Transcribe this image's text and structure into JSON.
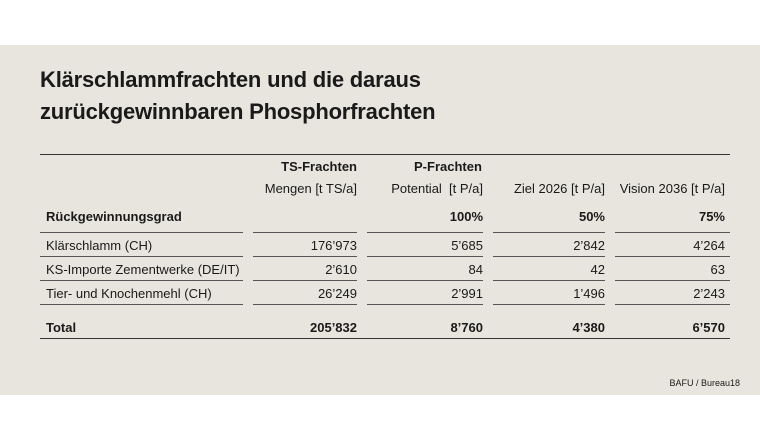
{
  "header": {
    "title": [
      "Klärschlammfrachten und die daraus",
      "zurückgewinnbaren Phosphorfrachten"
    ]
  },
  "table": {
    "group_headers": {
      "ts": "TS-Frachten",
      "p": "P-Frachten"
    },
    "columns": [
      "Mengen [t TS/a]",
      "Potential  [t P/a]",
      "Ziel 2026 [t P/a]",
      "Vision 2036 [t P/a]"
    ],
    "recovery": {
      "label": "Rückgewinnungsgrad",
      "values": [
        "100%",
        "50%",
        "75%"
      ]
    },
    "rows": [
      {
        "label": "Klärschlamm (CH)",
        "values": [
          "176’973",
          "5’685",
          "2’842",
          "4’264"
        ]
      },
      {
        "label": "KS-Importe Zementwerke (DE/IT)",
        "values": [
          "2’610",
          "84",
          "42",
          "63"
        ]
      },
      {
        "label": "Tier- und Knochenmehl (CH)",
        "values": [
          "26’249",
          "2’991",
          "1’496",
          "2’243"
        ]
      }
    ],
    "total": {
      "label": "Total",
      "values": [
        "205’832",
        "8’760",
        "4’380",
        "6’570"
      ]
    }
  },
  "footer": {
    "source": "BAFU / Bureau18"
  }
}
